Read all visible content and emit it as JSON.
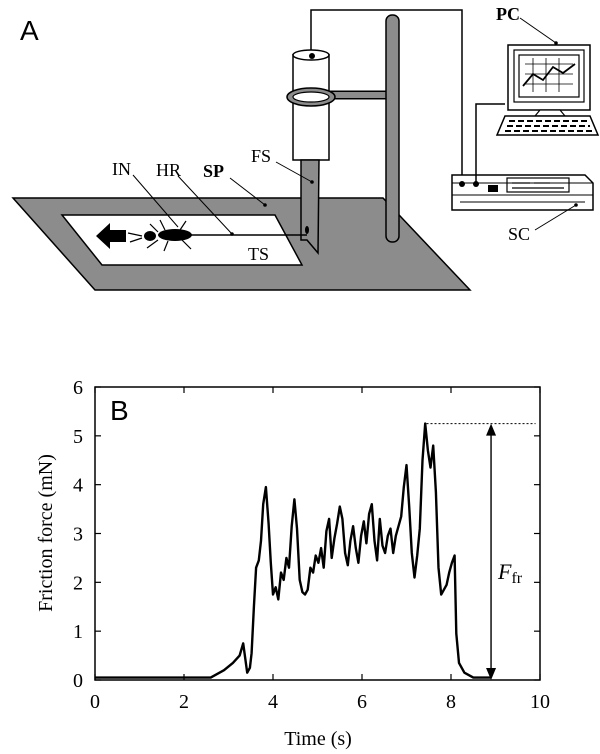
{
  "panel_a": {
    "panel_letter": "A",
    "labels": {
      "pc": "PC",
      "in": "IN",
      "hr": "HR",
      "sp": "SP",
      "fs": "FS",
      "ts": "TS",
      "sc": "SC"
    }
  },
  "chart_data": {
    "type": "line",
    "panel_letter": "B",
    "xlabel": "Time (s)",
    "ylabel": "Friction force (mN)",
    "annotation": {
      "symbol": "F",
      "subscript": "fr",
      "value": 5.25
    },
    "xlim": [
      0,
      10
    ],
    "ylim": [
      0,
      6
    ],
    "xticks": [
      0,
      2,
      4,
      6,
      8,
      10
    ],
    "yticks": [
      0,
      1,
      2,
      3,
      4,
      5,
      6
    ],
    "grid": false,
    "series": [
      {
        "x": [
          0,
          1,
          2,
          2.6,
          2.9,
          3.1,
          3.25,
          3.33,
          3.42,
          3.48,
          3.52,
          3.57,
          3.62,
          3.68,
          3.73,
          3.78,
          3.84,
          3.9,
          3.95,
          4.0,
          4.06,
          4.12,
          4.18,
          4.24,
          4.3,
          4.36,
          4.42,
          4.48,
          4.54,
          4.6,
          4.66,
          4.72,
          4.78,
          4.84,
          4.9,
          4.96,
          5.02,
          5.08,
          5.14,
          5.2,
          5.26,
          5.32,
          5.38,
          5.44,
          5.5,
          5.56,
          5.62,
          5.68,
          5.74,
          5.8,
          5.86,
          5.92,
          5.98,
          6.04,
          6.1,
          6.16,
          6.22,
          6.28,
          6.34,
          6.4,
          6.46,
          6.52,
          6.58,
          6.64,
          6.7,
          6.76,
          6.82,
          6.88,
          6.94,
          7.0,
          7.06,
          7.12,
          7.18,
          7.24,
          7.3,
          7.36,
          7.42,
          7.48,
          7.54,
          7.6,
          7.66,
          7.72,
          7.78,
          7.84,
          7.9,
          7.96,
          8.02,
          8.08,
          8.12,
          8.18,
          8.3,
          8.5,
          8.9
        ],
        "y": [
          0.05,
          0.05,
          0.05,
          0.05,
          0.2,
          0.35,
          0.5,
          0.75,
          0.15,
          0.25,
          0.55,
          1.5,
          2.3,
          2.45,
          2.85,
          3.6,
          3.95,
          3.2,
          2.4,
          1.75,
          1.9,
          1.65,
          2.2,
          2.05,
          2.5,
          2.3,
          3.15,
          3.7,
          3.1,
          2.05,
          1.8,
          1.75,
          1.85,
          2.3,
          2.2,
          2.55,
          2.4,
          2.7,
          2.3,
          3.05,
          3.3,
          2.5,
          2.9,
          3.2,
          3.55,
          3.3,
          2.6,
          2.35,
          2.85,
          3.15,
          2.7,
          2.4,
          2.95,
          3.25,
          2.8,
          3.4,
          3.6,
          2.85,
          2.45,
          3.3,
          2.75,
          2.6,
          2.95,
          3.1,
          2.6,
          2.95,
          3.15,
          3.35,
          3.95,
          4.4,
          3.55,
          2.6,
          2.1,
          2.55,
          3.1,
          4.5,
          5.25,
          4.7,
          4.35,
          4.8,
          3.85,
          2.3,
          1.75,
          1.85,
          1.95,
          2.2,
          2.4,
          2.55,
          0.95,
          0.35,
          0.15,
          0.05,
          0.05
        ]
      }
    ]
  }
}
